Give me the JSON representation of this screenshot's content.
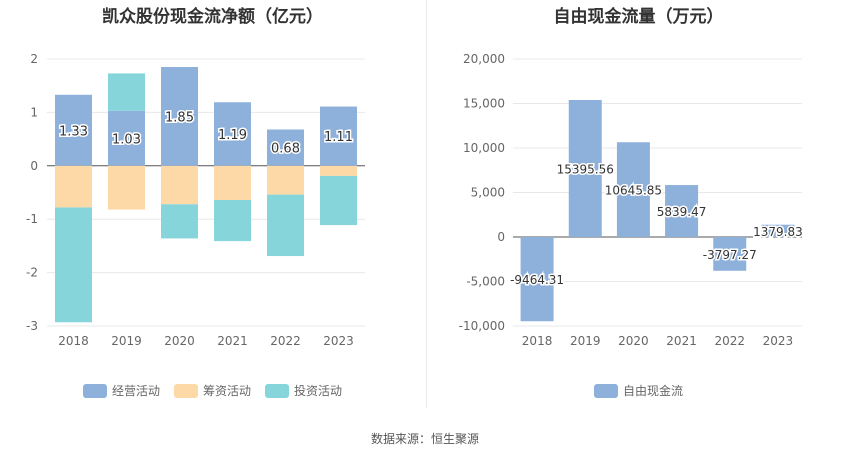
{
  "colors": {
    "operating": "#8eb1dc",
    "financing": "#fdd9a8",
    "investing": "#86d5da",
    "free_cash_flow": "#8eb1dc"
  },
  "source": "数据来源：恒生聚源",
  "chart_data": [
    {
      "type": "bar",
      "stacked": true,
      "title": "凯众股份现金流净额（亿元）",
      "categories": [
        "2018",
        "2019",
        "2020",
        "2021",
        "2022",
        "2023"
      ],
      "ylim": [
        -3,
        2
      ],
      "yticks": [
        2,
        1,
        0,
        -1,
        -2,
        -3
      ],
      "series": [
        {
          "name": "经营活动",
          "key": "operating",
          "values": [
            1.33,
            1.03,
            1.85,
            1.19,
            0.68,
            1.11
          ]
        },
        {
          "name": "筹资活动",
          "key": "financing",
          "values": [
            -0.78,
            -0.82,
            -0.72,
            -0.64,
            -0.54,
            -0.19
          ]
        },
        {
          "name": "投资活动",
          "key": "investing",
          "values": [
            -2.15,
            0.7,
            -0.64,
            -0.77,
            -1.15,
            -0.92
          ]
        }
      ],
      "data_labels": [
        "1.33",
        "1.03",
        "1.85",
        "1.19",
        "0.68",
        "1.11"
      ]
    },
    {
      "type": "bar",
      "title": "自由现金流量（万元）",
      "categories": [
        "2018",
        "2019",
        "2020",
        "2021",
        "2022",
        "2023"
      ],
      "ylim": [
        -10000,
        20000
      ],
      "yticks": [
        20000,
        15000,
        10000,
        5000,
        0,
        -5000,
        -10000
      ],
      "ytick_labels": [
        "20,000",
        "15,000",
        "10,000",
        "5,000",
        "0",
        "-5,000",
        "-10,000"
      ],
      "series": [
        {
          "name": "自由现金流",
          "key": "free_cash_flow",
          "values": [
            -9464.31,
            15395.56,
            10645.85,
            5839.47,
            -3797.27,
            1379.83
          ]
        }
      ],
      "data_labels": [
        "-9464.31",
        "15395.56",
        "10645.85",
        "5839.47",
        "-3797.27",
        "1379.83"
      ]
    }
  ]
}
